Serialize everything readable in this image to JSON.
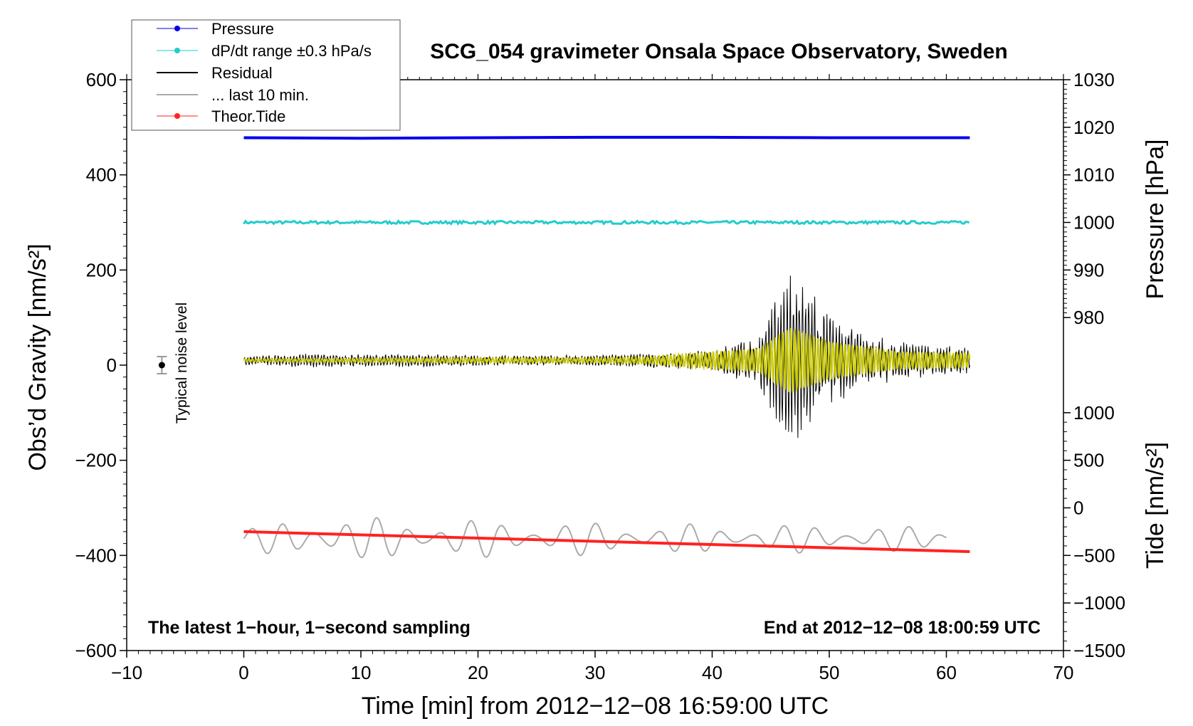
{
  "chart_data": {
    "type": "line",
    "title": "SCG_054 gravimeter Onsala Space Observatory, Sweden",
    "xlabel": "Time [min] from 2012−12−08 16:59:00 UTC",
    "ylabel_left": "Obs’d Gravity [nm/s²]",
    "ylabel_right_pressure": "Pressure [hPa]",
    "ylabel_right_tide": "Tide [nm/s²]",
    "xlim": [
      -10,
      70
    ],
    "ylim_left": [
      -600,
      600
    ],
    "x_ticks": [
      -10,
      0,
      10,
      20,
      30,
      40,
      50,
      60,
      70
    ],
    "x_tick_labels": [
      "−10",
      "0",
      "10",
      "20",
      "30",
      "40",
      "50",
      "60",
      "70"
    ],
    "y_ticks_left": [
      600,
      400,
      200,
      0,
      -200,
      -400,
      -600
    ],
    "y_tick_labels_left": [
      "600",
      "400",
      "200",
      "0",
      "−200",
      "−400",
      "−600"
    ],
    "pressure_axis": {
      "ticks": [
        1030,
        1020,
        1010,
        1000,
        990,
        980
      ],
      "tick_labels": [
        "1030",
        "1020",
        "1010",
        "1000",
        "990",
        "980"
      ],
      "mapping": [
        [
          1030,
          600
        ],
        [
          980,
          100
        ]
      ]
    },
    "tide_axis": {
      "ticks": [
        1000,
        500,
        0,
        -500,
        -1000,
        -1500
      ],
      "tick_labels": [
        "1000",
        "500",
        "0",
        "−500",
        "−1000",
        "−1500"
      ],
      "mapping": [
        [
          1000,
          -100
        ],
        [
          -1500,
          -600
        ]
      ]
    },
    "legend": {
      "position": "top-left",
      "entries": [
        {
          "label": "Pressure",
          "color": "#0000ee",
          "marker": true
        },
        {
          "label": "dP/dt range ±0.3 hPa/s",
          "color": "#22cccc",
          "marker": true
        },
        {
          "label": "Residual",
          "color": "#000000",
          "marker": false
        },
        {
          "label": "... last 10 min.",
          "color": "#aaaaaa",
          "marker": false
        },
        {
          "label": "Theor.Tide",
          "color": "#ff2222",
          "marker": true
        }
      ]
    },
    "series": [
      {
        "name": "Pressure",
        "color": "#0000ee",
        "axis": "pressure",
        "x": [
          0,
          10,
          20,
          30,
          40,
          50,
          62
        ],
        "values": [
          1017.8,
          1017.7,
          1017.8,
          1017.9,
          1017.9,
          1017.8,
          1017.8
        ]
      },
      {
        "name": "dP/dt range ±0.3 hPa/s",
        "color": "#22cccc",
        "axis": "left",
        "x": [
          0,
          62
        ],
        "values": [
          300,
          300
        ],
        "band": 3
      },
      {
        "name": "Residual",
        "color": "#000000",
        "axis": "left",
        "x": [
          0,
          5,
          10,
          15,
          20,
          25,
          30,
          35,
          40,
          44,
          46,
          46.6,
          48,
          50,
          53,
          56,
          59,
          62
        ],
        "envelope": [
          8,
          14,
          12,
          13,
          10,
          10,
          10,
          15,
          20,
          50,
          160,
          190,
          150,
          90,
          50,
          40,
          30,
          30
        ],
        "center": 10
      },
      {
        "name": "Residual (low-pass)",
        "color": "#cccc00",
        "axis": "left",
        "x": [
          0,
          10,
          20,
          30,
          35,
          40,
          44,
          46.6,
          50,
          56,
          62
        ],
        "envelope": [
          3,
          4,
          5,
          5,
          8,
          18,
          25,
          70,
          40,
          18,
          15
        ],
        "center": 10
      },
      {
        "name": "... last 10 min.",
        "color": "#aaaaaa",
        "axis": "left",
        "x": [
          0,
          5,
          7.5,
          10,
          20,
          30,
          40,
          50,
          60
        ],
        "envelope": [
          25,
          40,
          65,
          45,
          40,
          35,
          30,
          30,
          25
        ],
        "center": -365
      },
      {
        "name": "Theor.Tide",
        "color": "#ff2222",
        "axis": "left",
        "x": [
          0,
          62
        ],
        "values": [
          -350,
          -392
        ]
      }
    ],
    "noise_marker": {
      "x": -7,
      "y": 0,
      "err": 18,
      "label": "Typical noise level"
    },
    "annotations": {
      "left": "The latest 1−hour, 1−second sampling",
      "right": "End at 2012−12−08 18:00:59 UTC"
    }
  }
}
